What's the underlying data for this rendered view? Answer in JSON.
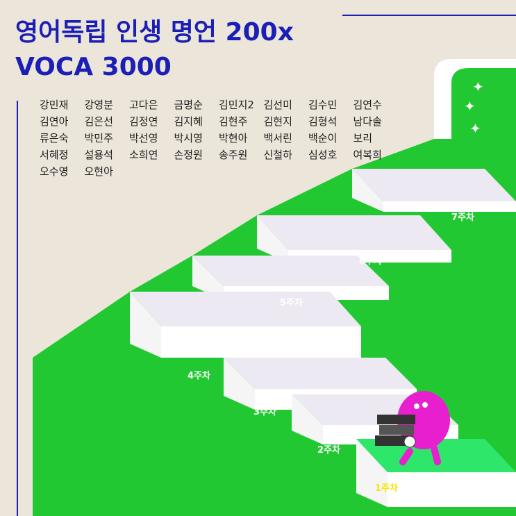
{
  "header": {
    "title_line1": "영어독립 인생 명언 200x",
    "title_line2": "VOCA 3000"
  },
  "names": [
    "강민재",
    "강영분",
    "고다은",
    "금명순",
    "김민지2",
    "김선미",
    "김수민",
    "김연수",
    "김연아",
    "김은선",
    "김정연",
    "김지혜",
    "김현주",
    "김현지",
    "김형석",
    "남다솔",
    "류은숙",
    "박민주",
    "박선영",
    "박시영",
    "박현아",
    "백서린",
    "백순이",
    "보리",
    "서혜정",
    "설용석",
    "소희연",
    "손정원",
    "송주원",
    "신철하",
    "심성호",
    "여복희",
    "오수영",
    "오현아"
  ],
  "steps": [
    "1주차",
    "2주차",
    "3주차",
    "4주차",
    "5주차",
    "6주차",
    "7주차"
  ]
}
